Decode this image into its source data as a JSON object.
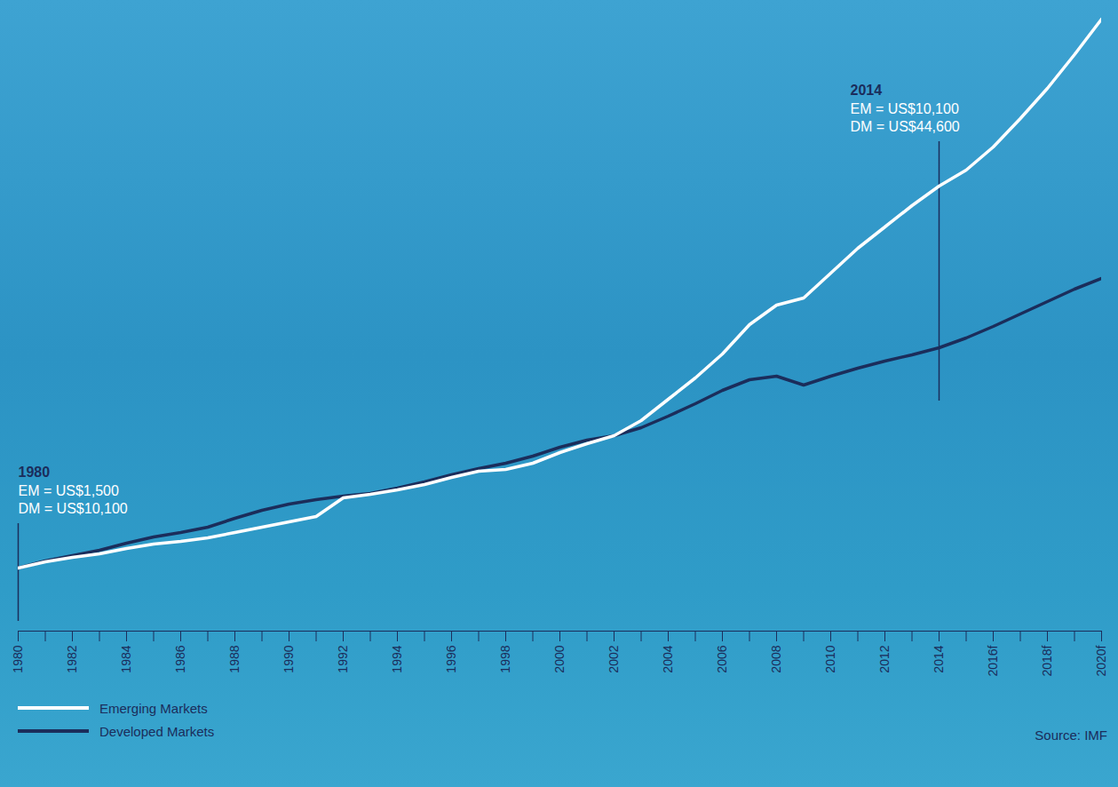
{
  "chart_data": {
    "type": "line",
    "source": "Source: IMF",
    "x": [
      1980,
      1981,
      1982,
      1983,
      1984,
      1985,
      1986,
      1987,
      1988,
      1989,
      1990,
      1991,
      1992,
      1993,
      1994,
      1995,
      1996,
      1997,
      1998,
      1999,
      2000,
      2001,
      2002,
      2003,
      2004,
      2005,
      2006,
      2007,
      2008,
      2009,
      2010,
      2011,
      2012,
      2013,
      2014,
      2015,
      2016,
      2017,
      2018,
      2019,
      2020
    ],
    "series": [
      {
        "name": "Emerging Markets",
        "color": "#ffffff",
        "values": [
          7.1,
          7.8,
          8.3,
          8.7,
          9.3,
          9.8,
          10.1,
          10.5,
          11.1,
          11.7,
          12.3,
          12.9,
          15.0,
          15.4,
          15.9,
          16.5,
          17.3,
          18.0,
          18.2,
          18.9,
          20.1,
          21.1,
          22.0,
          23.7,
          26.1,
          28.5,
          31.2,
          34.5,
          36.7,
          37.5,
          40.3,
          43.1,
          45.5,
          47.9,
          50.1,
          51.9,
          54.5,
          57.7,
          61.1,
          64.9,
          68.9
        ]
      },
      {
        "name": "Developed Markets",
        "color": "#1b2d5b",
        "values": [
          7.1,
          7.9,
          8.5,
          9.1,
          9.9,
          10.6,
          11.1,
          11.7,
          12.7,
          13.6,
          14.3,
          14.8,
          15.2,
          15.5,
          16.1,
          16.8,
          17.6,
          18.3,
          18.9,
          19.7,
          20.7,
          21.5,
          22.0,
          22.9,
          24.2,
          25.6,
          27.1,
          28.3,
          28.7,
          27.7,
          28.7,
          29.6,
          30.4,
          31.1,
          31.9,
          33.0,
          34.3,
          35.7,
          37.1,
          38.5,
          39.7
        ]
      }
    ],
    "xlim": [
      1980,
      2020
    ],
    "xticks": [
      1980,
      1982,
      1984,
      1986,
      1988,
      1990,
      1992,
      1994,
      1996,
      1998,
      2000,
      2002,
      2004,
      2006,
      2008,
      2010,
      2012,
      2014,
      {
        "value": 2016,
        "label": "2016f"
      },
      {
        "value": 2018,
        "label": "2018f"
      },
      {
        "value": 2020,
        "label": "2020f"
      }
    ],
    "ylim": [
      0,
      70
    ],
    "tick_labels": "x",
    "legend": "lower left",
    "annotations": [
      {
        "x": 1980,
        "title": "1980",
        "lines": [
          "EM = US$1,500",
          "DM = US$10,100"
        ]
      },
      {
        "x": 2014,
        "title": "2014",
        "lines": [
          "EM = US$10,100",
          "DM = US$44,600"
        ]
      }
    ]
  }
}
